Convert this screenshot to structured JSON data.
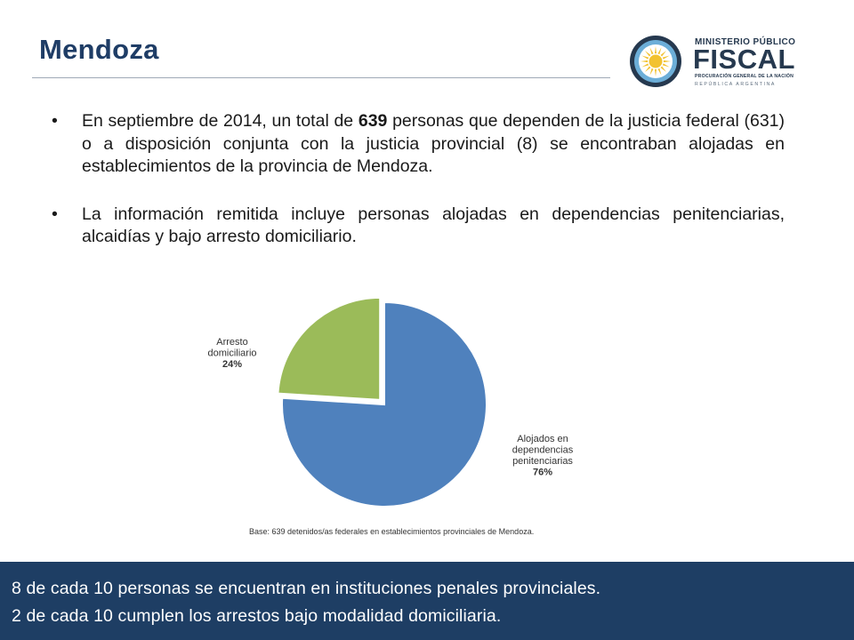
{
  "header": {
    "title": "Mendoza"
  },
  "logo": {
    "line1": "MINISTERIO PÚBLICO",
    "main": "FISCAL",
    "line2": "PROCURACIÓN GENERAL DE LA NACIÓN",
    "line3": "REPÚBLICA ARGENTINA",
    "colors": {
      "navy": "#26394f",
      "light_blue": "#6caed8",
      "sun": "#f2c230"
    }
  },
  "bullets": [
    {
      "marker": "•",
      "before": "En septiembre de 2014, un total de ",
      "bold": "639",
      "after": " personas que dependen de la justicia federal (631) o a disposición conjunta con la justicia provincial (8) se encontraban alojadas en establecimientos de la provincia de Mendoza."
    },
    {
      "marker": "•",
      "text": "La información remitida incluye personas alojadas en dependencias penitenciarias, alcaidías y bajo arresto domiciliario."
    }
  ],
  "chart_data": {
    "type": "pie",
    "title": "",
    "slices": [
      {
        "label_lines": [
          "Alojados en",
          "dependencias",
          "penitenciarias"
        ],
        "value": 76,
        "value_label": "76%",
        "color": "#4f81bd"
      },
      {
        "label_lines": [
          "Arresto",
          "domiciliario"
        ],
        "value": 24,
        "value_label": "24%",
        "color": "#9bbb59",
        "exploded": true
      }
    ],
    "note": "Base: 639 detenidos/as federales en establecimientos provinciales de Mendoza."
  },
  "banner": {
    "line1": "8 de cada 10 personas se encuentran en instituciones penales provinciales.",
    "line2": "2 de cada 10 cumplen los arrestos bajo modalidad domiciliaria.",
    "color": "#1e3e64"
  }
}
